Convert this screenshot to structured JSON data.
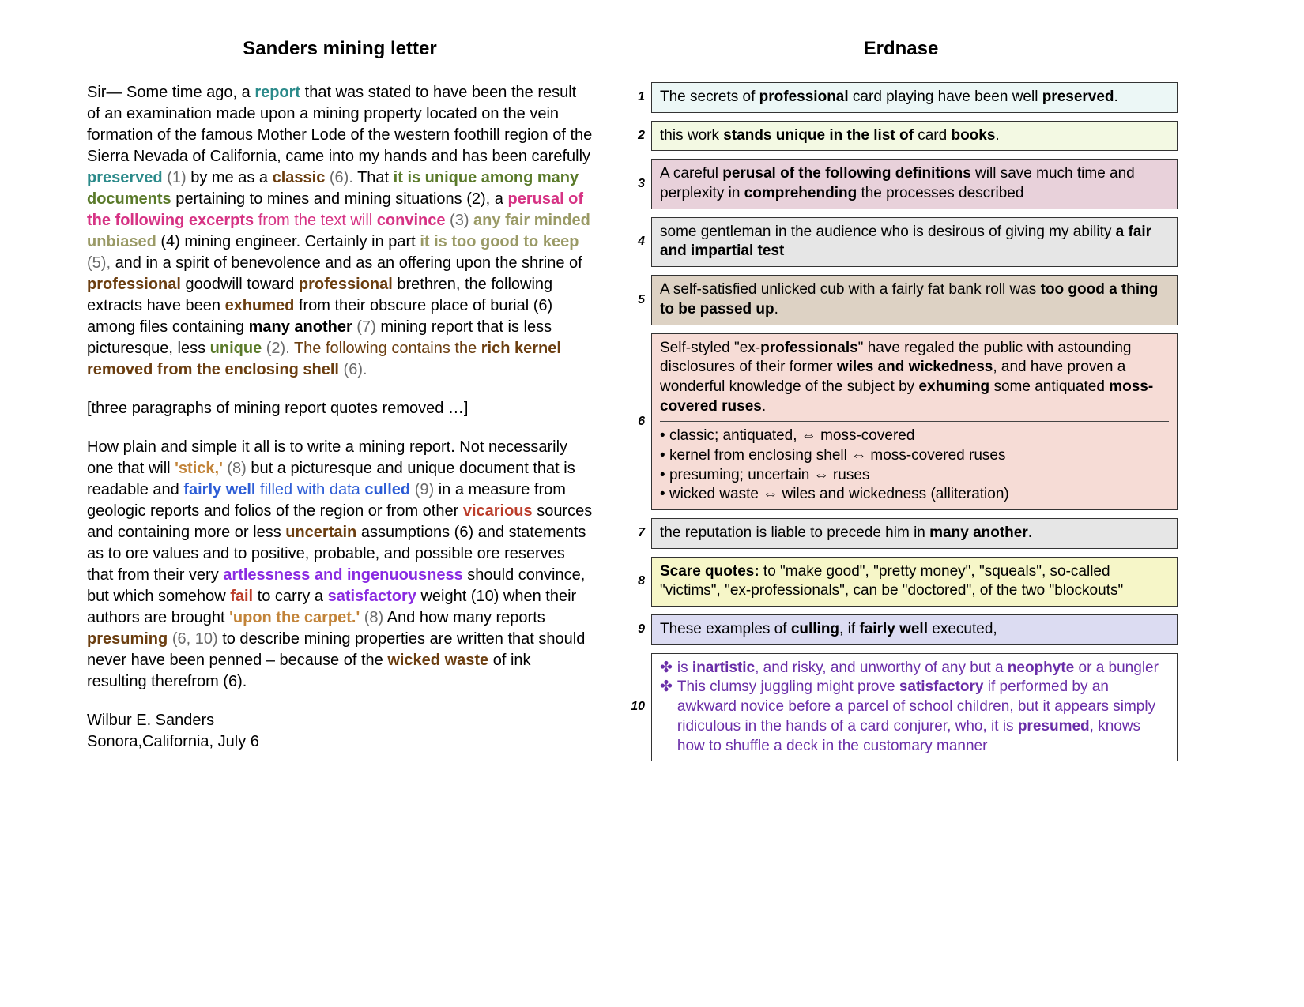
{
  "left": {
    "title": "Sanders mining letter",
    "intro": "Sir— Some time ago, a ",
    "p1": {
      "report": "report",
      "t1": " that was stated to have been the result of an examination made upon a mining property located on the vein formation of the famous Mother Lode of the western foothill region of the Sierra Nevada of California, came into my hands and has been carefully ",
      "preserved": "preserved",
      "ref1": " (1)",
      "t2": " by me as a ",
      "classic": "classic",
      "ref6a": " (6).",
      "t3": " That ",
      "unique": "it is unique among many documents",
      "t4": " pertaining to mines and mining situations (2), a ",
      "perusal": "perusal of the following excerpts",
      "t5": " from the text will ",
      "convince": "convince",
      "ref3": " (3) ",
      "fair": "any fair minded unbiased",
      "t6": " (4) mining engineer. Certainly in part ",
      "toogood": "it is too good to keep",
      "ref5": " (5),",
      "t7": " and in a spirit of benevolence and as an offering upon the shrine of ",
      "prof1": "professional",
      "t8": " goodwill toward ",
      "prof2": "professional",
      "t9": " brethren, the following extracts have been ",
      "exhumed": "exhumed",
      "t10": " from their obscure place of burial (6) among files containing ",
      "manyanother": "many another",
      "ref7": " (7)",
      "t11": " mining report that is less picturesque, less ",
      "unique2": "unique",
      "ref2b": " (2).",
      "t12": " The following contains the ",
      "kernel": "rich kernel removed from the enclosing shell",
      "ref6b": " (6)."
    },
    "removed": "[three paragraphs of mining report quotes removed …]",
    "p2": {
      "t0": "How plain and simple it all is to write a mining report. Not necessarily one that will ",
      "stick": "'stick,'",
      "ref8a": " (8)",
      "t1": " but a picturesque and unique document that is readable and ",
      "fairlywell": "fairly well",
      "t2": " filled with data ",
      "culled": "culled",
      "ref9": " (9)",
      "t3": " in a measure from geologic reports and folios of the region or from other ",
      "vicarious": "vicarious",
      "t4": " sources and containing more or less ",
      "uncertain": "uncertain",
      "t5": " assumptions (6) and statements as to ore values and to positive, probable, and possible ore reserves that from their very ",
      "artless": "artlessness and ingenuousness",
      "t6": " should convince, but which somehow ",
      "fail": "fail",
      "t7": " to carry a ",
      "satisfactory": "satisfactory",
      "t8": " weight (10) when their authors are brought ",
      "carpet": "'upon the carpet.'",
      "ref8b": " (8)  ",
      "t9": "And how many reports ",
      "presuming": "presuming",
      "ref610": " (6, 10)",
      "t10": " to describe mining properties are written that should never have been penned – because of the ",
      "wickedwaste": "wicked waste",
      "t11": " of ink resulting therefrom (6)."
    },
    "sig1": "Wilbur E. Sanders",
    "sig2": "Sonora,California, July 6"
  },
  "right": {
    "title": "Erdnase",
    "boxes": [
      {
        "n": "1",
        "bg": "bg1",
        "html": "The secrets of <b>professional</b> card playing have been well <b>preserved</b>."
      },
      {
        "n": "2",
        "bg": "bg2",
        "html": "this work <b>stands unique in the list of</b> card <b>books</b>."
      },
      {
        "n": "3",
        "bg": "bg3",
        "html": "A careful <b>perusal of the following definitions</b> will save much time and perplexity in <b>comprehending</b> the processes described"
      },
      {
        "n": "4",
        "bg": "bg4",
        "html": "some gentleman in the audience who is desirous of giving my ability <b>a fair and impartial test</b>"
      },
      {
        "n": "5",
        "bg": "bg5",
        "html": "A self-satisfied unlicked cub with a fairly fat bank roll was <b>too good a thing to be passed up</b>."
      },
      {
        "n": "6",
        "bg": "bg6",
        "html": "Self-styled \"ex-<b>professionals</b>\" have regaled the public with astounding disclosures of their former <b>wiles and wickedness</b>, and have proven a wonderful knowledge of the subject by <b>exhuming</b> some antiquated <b>moss-covered ruses</b>.<hr><div class='bullets'><div>classic; antiquated, ⇔ moss-covered</div><div>kernel from enclosing shell ⇔ moss-covered ruses</div><div>presuming; uncertain ⇔ ruses</div><div>wicked waste ⇔ wiles and wickedness (alliteration)</div></div>"
      },
      {
        "n": "7",
        "bg": "bg7",
        "html": "the reputation is liable to precede him in <b>many another</b>."
      },
      {
        "n": "8",
        "bg": "bg8",
        "html": "<b>Scare quotes:</b> to \"make good\", \"pretty money\", \"squeals\", so-called \"victims\", \"ex-professionals\", can be \"doctored\", of the two \"blockouts\""
      },
      {
        "n": "9",
        "bg": "bg9",
        "html": "These examples of <b>culling</b>, if <b>fairly well</b> executed,"
      },
      {
        "n": "10",
        "bg": "bg10",
        "html": "<div class='item'><span>is <b>inartistic</b>, and risky, and unworthy of any but a <b>neophyte</b> or a bungler</span></div><div class='item'><span>This clumsy juggling might prove <b>satisfactory</b> if performed by an awkward novice before a parcel of school children, but it appears simply ridiculous in the hands of a card conjurer, who, it is <b>presumed</b>, knows how to shuffle a deck in the customary manner</span></div>"
      }
    ]
  },
  "colors": {
    "teal": "#2b8a8a",
    "brown": "#6b3e10",
    "olive": "#5a7a2a",
    "magenta": "#d63384",
    "fair": "#9a9a66",
    "orange": "#c2843a",
    "blue": "#2d5dd6",
    "red": "#bb3d2a",
    "purple": "#8a2be2",
    "gray": "#6a6a6a"
  }
}
